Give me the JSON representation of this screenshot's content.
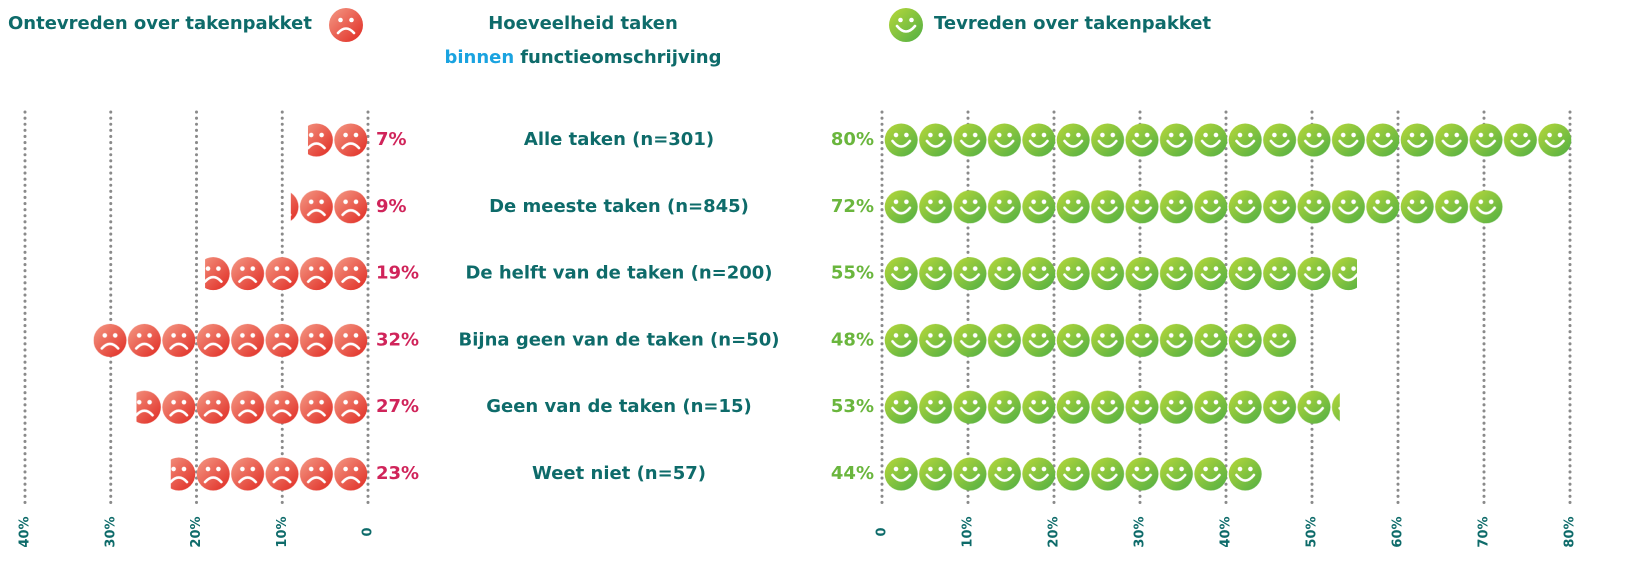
{
  "center_title": {
    "line1": "Hoeveelheid taken",
    "highlight": "binnen",
    "line2": "functieomschrijving"
  },
  "chart_data": [
    {
      "type": "pictogram",
      "title": "Ontevreden over takenpakket",
      "direction": "left",
      "color": "#e63a2e",
      "categories": [
        "Alle taken (n=301)",
        "De meeste taken (n=845)",
        "De helft van de taken (n=200)",
        "Bijna geen van de taken (n=50)",
        "Geen van de taken (n=15)",
        "Weet niet (n=57)"
      ],
      "values": [
        7,
        9,
        19,
        32,
        27,
        23
      ],
      "value_labels": [
        "7%",
        "9%",
        "19%",
        "32%",
        "27%",
        "23%"
      ],
      "xlim": [
        0,
        40
      ],
      "xticks": [
        {
          "value": 40,
          "label": "40%"
        },
        {
          "value": 30,
          "label": "30%"
        },
        {
          "value": 20,
          "label": "20%"
        },
        {
          "value": 10,
          "label": "10%"
        },
        0
      ],
      "grid": true
    },
    {
      "type": "pictogram",
      "title": "Tevreden over takenpakket",
      "direction": "right",
      "color": "#6ab83c",
      "values": [
        80,
        72,
        55,
        48,
        53,
        44
      ],
      "value_labels": [
        "80%",
        "72%",
        "55%",
        "48%",
        "53%",
        "44%"
      ],
      "xlim": [
        0,
        80
      ],
      "xticks": [
        0,
        {
          "value": 10,
          "label": "10%"
        },
        {
          "value": 20,
          "label": "20%"
        },
        {
          "value": 30,
          "label": "30%"
        },
        {
          "value": 40,
          "label": "40%"
        },
        {
          "value": 50,
          "label": "50%"
        },
        {
          "value": 60,
          "label": "60%"
        },
        {
          "value": 70,
          "label": "70%"
        },
        {
          "value": 80,
          "label": "80%"
        }
      ],
      "grid": true
    }
  ]
}
